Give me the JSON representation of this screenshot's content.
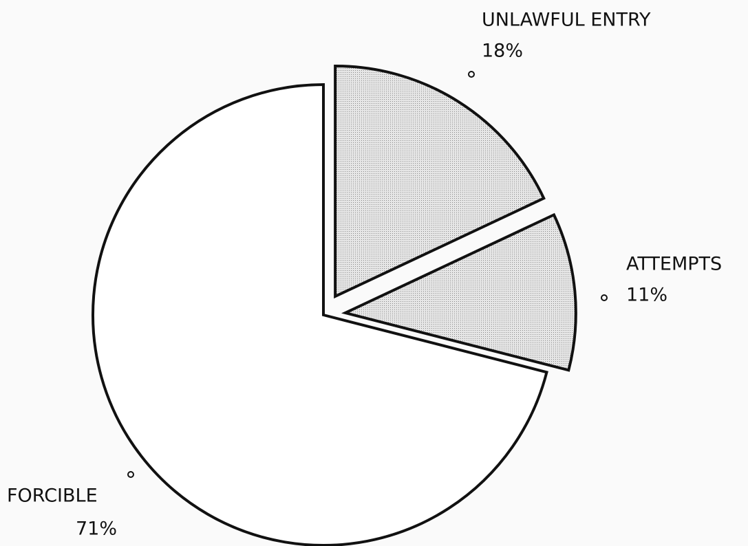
{
  "chart_data": {
    "type": "pie",
    "categories": [
      "UNLAWFUL ENTRY",
      "ATTEMPTS",
      "FORCIBLE"
    ],
    "values": [
      18,
      11,
      71
    ],
    "value_labels": [
      "18%",
      "11%",
      "71%"
    ],
    "colors": [
      "#d9d9d9",
      "#d9d9d9",
      "#ffffff"
    ],
    "explode": [
      true,
      true,
      false
    ]
  }
}
